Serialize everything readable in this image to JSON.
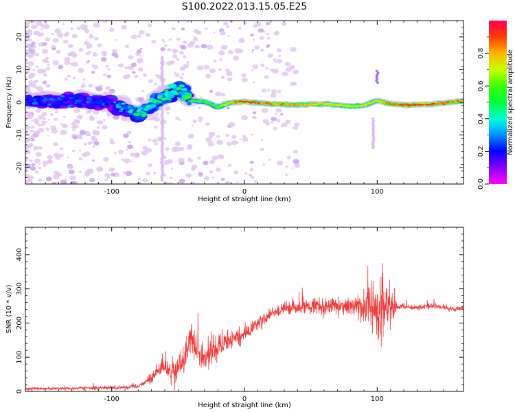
{
  "title": "S100.2022.013.15.05.E25",
  "chart_data": [
    {
      "type": "heatmap",
      "title": "S100.2022.013.15.05.E25",
      "xlabel": "Height of straight line (km)",
      "ylabel": "Frequency (Hz)",
      "xlim": [
        -165,
        165
      ],
      "ylim": [
        -25,
        25
      ],
      "xticks": [
        -100,
        0,
        100
      ],
      "yticks": [
        -20,
        -10,
        0,
        10,
        20
      ],
      "colorbar": {
        "label": "Normalized spectral amplitude",
        "range": [
          0,
          1
        ],
        "ticks": [
          "0.0",
          "0.2",
          "0.4",
          "0.6",
          "0.8"
        ],
        "colormap": "gist_rainbow_r"
      },
      "ridge": [
        {
          "x": -165,
          "f": 0.5
        },
        {
          "x": -150,
          "f": 0.8
        },
        {
          "x": -135,
          "f": 0.3
        },
        {
          "x": -120,
          "f": 0.6
        },
        {
          "x": -105,
          "f": 0.2
        },
        {
          "x": -90,
          "f": -1.5
        },
        {
          "x": -80,
          "f": -3.5
        },
        {
          "x": -70,
          "f": -1.0
        },
        {
          "x": -60,
          "f": 2.0
        },
        {
          "x": -50,
          "f": 4.0
        },
        {
          "x": -45,
          "f": 2.5
        },
        {
          "x": -40,
          "f": 0.5
        },
        {
          "x": -30,
          "f": 0.2
        },
        {
          "x": -20,
          "f": -1.5
        },
        {
          "x": -10,
          "f": 0.0
        },
        {
          "x": 0,
          "f": 0.2
        },
        {
          "x": 20,
          "f": -0.5
        },
        {
          "x": 40,
          "f": -0.8
        },
        {
          "x": 60,
          "f": -0.5
        },
        {
          "x": 70,
          "f": -0.8
        },
        {
          "x": 80,
          "f": -1.2
        },
        {
          "x": 90,
          "f": -1.0
        },
        {
          "x": 100,
          "f": 0.5
        },
        {
          "x": 110,
          "f": -0.5
        },
        {
          "x": 120,
          "f": -0.8
        },
        {
          "x": 140,
          "f": -0.6
        },
        {
          "x": 160,
          "f": 0.2
        },
        {
          "x": 165,
          "f": 0.3
        }
      ],
      "peak_amplitude_by_height": [
        {
          "x": -165,
          "a": 0.25
        },
        {
          "x": -100,
          "a": 0.25
        },
        {
          "x": -80,
          "a": 0.45
        },
        {
          "x": -60,
          "a": 0.5
        },
        {
          "x": -40,
          "a": 0.55
        },
        {
          "x": -20,
          "a": 0.6
        },
        {
          "x": 0,
          "a": 0.95
        },
        {
          "x": 20,
          "a": 0.85
        },
        {
          "x": 50,
          "a": 0.8
        },
        {
          "x": 80,
          "a": 0.7
        },
        {
          "x": 100,
          "a": 0.75
        },
        {
          "x": 120,
          "a": 0.95
        },
        {
          "x": 165,
          "a": 0.85
        }
      ]
    },
    {
      "type": "line",
      "xlabel": "Height of straight line (km)",
      "ylabel": "SNR (10 * v/v)",
      "xlim": [
        -165,
        165
      ],
      "ylim": [
        0,
        480
      ],
      "xticks": [
        -100,
        0,
        100
      ],
      "yticks": [
        0,
        100,
        200,
        300,
        400
      ],
      "color": "#ef3b3b",
      "series": [
        {
          "x": [
            -165,
            -150,
            -130,
            -110,
            -90,
            -80,
            -75,
            -70,
            -65,
            -62,
            -60,
            -55,
            -50,
            -45,
            -42,
            -40,
            -37,
            -35,
            -30,
            -25,
            -20,
            -15,
            -10,
            -5,
            0,
            5,
            10,
            15,
            20,
            25,
            30,
            35,
            40,
            45,
            50,
            55,
            60,
            65,
            70,
            75,
            80,
            85,
            90,
            95,
            100,
            103,
            105,
            107,
            110,
            115,
            120,
            130,
            140,
            150,
            160,
            165
          ],
          "y": [
            8,
            8,
            9,
            10,
            12,
            15,
            25,
            40,
            60,
            80,
            70,
            50,
            65,
            100,
            150,
            160,
            140,
            110,
            100,
            120,
            130,
            140,
            150,
            160,
            170,
            180,
            195,
            210,
            225,
            235,
            240,
            245,
            240,
            250,
            245,
            250,
            245,
            250,
            250,
            245,
            250,
            240,
            245,
            250,
            240,
            250,
            240,
            250,
            250,
            245,
            250,
            245,
            250,
            245,
            240,
            245
          ]
        }
      ],
      "noise_amplitude_by_height": [
        {
          "x": -165,
          "n": 6
        },
        {
          "x": -80,
          "n": 10
        },
        {
          "x": -70,
          "n": 25
        },
        {
          "x": -60,
          "n": 40
        },
        {
          "x": -45,
          "n": 70
        },
        {
          "x": -40,
          "n": 80
        },
        {
          "x": -30,
          "n": 60
        },
        {
          "x": -20,
          "n": 55
        },
        {
          "x": 0,
          "n": 40
        },
        {
          "x": 20,
          "n": 30
        },
        {
          "x": 40,
          "n": 35
        },
        {
          "x": 60,
          "n": 40
        },
        {
          "x": 80,
          "n": 50
        },
        {
          "x": 90,
          "n": 90
        },
        {
          "x": 100,
          "n": 150
        },
        {
          "x": 105,
          "n": 220
        },
        {
          "x": 108,
          "n": 120
        },
        {
          "x": 115,
          "n": 15
        },
        {
          "x": 165,
          "n": 12
        }
      ]
    }
  ]
}
